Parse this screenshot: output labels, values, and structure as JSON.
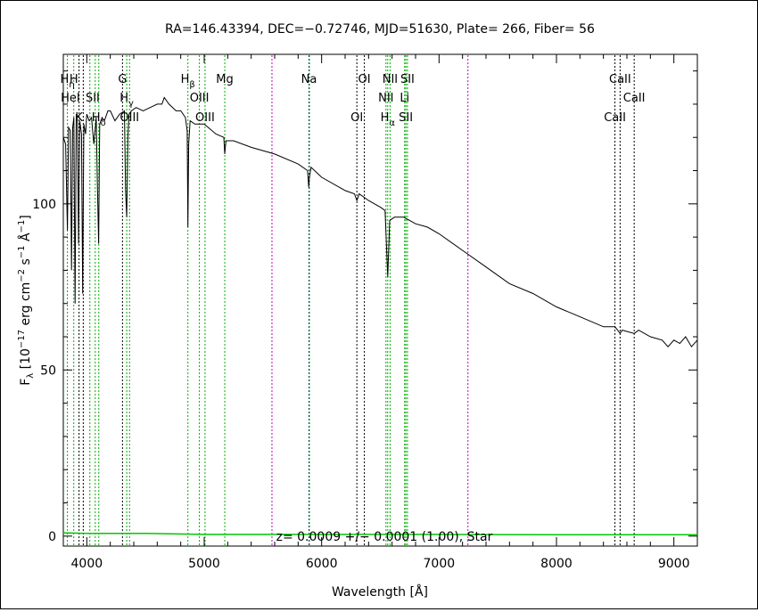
{
  "chart_data": {
    "type": "line",
    "title": "RA=146.43394, DEC=−0.72746, MJD=51630, Plate= 266, Fiber= 56",
    "xlabel": "Wavelength [Å]",
    "ylabel": "Fλ [10⁻¹⁷ erg cm⁻² s⁻¹ Å⁻¹]",
    "ylabel_parts": {
      "f": "F",
      "fsub": "λ",
      "open": " [10",
      "e1": "−17",
      "mid1": " erg cm",
      "e2": "−2",
      "mid2": " s",
      "e3": "−1",
      "mid3": " Å",
      "e4": "−1",
      "close": "]"
    },
    "xlabel_parts": {
      "main": "Wavelength [",
      "unit": "Å",
      "close": "]"
    },
    "xlim": [
      3800,
      9200
    ],
    "ylim": [
      -3,
      145
    ],
    "x_ticks": [
      4000,
      5000,
      6000,
      7000,
      8000,
      9000
    ],
    "x_tick_labels": [
      "4000",
      "5000",
      "6000",
      "7000",
      "8000",
      "9000"
    ],
    "y_ticks": [
      0,
      50,
      100
    ],
    "y_tick_labels": [
      "0",
      "50",
      "100"
    ],
    "annotation": "z= 0.0009 +/− 0.0001 (1.00), Star",
    "series": [
      {
        "name": "",
        "color": "#000000",
        "x": [
          3800,
          3820,
          3835,
          3845,
          3860,
          3870,
          3880,
          3890,
          3900,
          3910,
          3920,
          3930,
          3940,
          3955,
          3965,
          3975,
          3990,
          4000,
          4020,
          4040,
          4060,
          4080,
          4090,
          4101,
          4110,
          4130,
          4150,
          4180,
          4200,
          4240,
          4280,
          4320,
          4330,
          4340,
          4350,
          4360,
          4380,
          4420,
          4480,
          4540,
          4600,
          4640,
          4660,
          4700,
          4760,
          4800,
          4840,
          4855,
          4861,
          4868,
          4880,
          4920,
          5000,
          5100,
          5167,
          5175,
          5185,
          5250,
          5400,
          5600,
          5800,
          5880,
          5890,
          5896,
          5910,
          6000,
          6200,
          6280,
          6300,
          6320,
          6400,
          6500,
          6540,
          6563,
          6580,
          6620,
          6700,
          6800,
          6900,
          7000,
          7200,
          7400,
          7600,
          7800,
          8000,
          8200,
          8400,
          8498,
          8542,
          8560,
          8662,
          8700,
          8800,
          8900,
          8950,
          9000,
          9050,
          9100,
          9150,
          9200
        ],
        "y": [
          120,
          118,
          92,
          123,
          122,
          80,
          123,
          126,
          70,
          127,
          125,
          88,
          125,
          121,
          73,
          124,
          121,
          127,
          125,
          126,
          118,
          126,
          106,
          88,
          124,
          126,
          125,
          128,
          128,
          125,
          127,
          128,
          104,
          96,
          120,
          127,
          128,
          129,
          128,
          129,
          130,
          130,
          132,
          130,
          128,
          128,
          126,
          122,
          93,
          118,
          125,
          124,
          124,
          121,
          120,
          115,
          119,
          119,
          117,
          115,
          112,
          110,
          105,
          108,
          111,
          108,
          104,
          103,
          101,
          103,
          101,
          99,
          98,
          78,
          95,
          96,
          96,
          94,
          93,
          91,
          86,
          81,
          76,
          73,
          69,
          66,
          63,
          63,
          61,
          62,
          61,
          62,
          60,
          59,
          57,
          59,
          58,
          60,
          57,
          59
        ]
      },
      {
        "name": "",
        "color": "#00c800",
        "x": [
          3800,
          4000,
          4500,
          5000,
          6000,
          7000,
          8000,
          9000,
          9200
        ],
        "y": [
          1.0,
          0.8,
          0.8,
          0.5,
          0.5,
          0.5,
          0.4,
          0.4,
          0.4
        ]
      }
    ],
    "reference_lines": [
      {
        "x": 3835,
        "color": "#00b000"
      },
      {
        "x": 3889,
        "color": "#00b000"
      },
      {
        "x": 3934,
        "color": "#000000"
      },
      {
        "x": 3970,
        "color": "#000000"
      },
      {
        "x": 4026,
        "color": "#00b000"
      },
      {
        "x": 4072,
        "color": "#00b000"
      },
      {
        "x": 4102,
        "color": "#00b000"
      },
      {
        "x": 4304,
        "color": "#000000"
      },
      {
        "x": 4340,
        "color": "#00b000"
      },
      {
        "x": 4364,
        "color": "#00b000"
      },
      {
        "x": 4861,
        "color": "#00b000"
      },
      {
        "x": 4959,
        "color": "#00b000"
      },
      {
        "x": 5007,
        "color": "#00b000"
      },
      {
        "x": 5175,
        "color": "#00b000"
      },
      {
        "x": 5577,
        "color": "#c000c0"
      },
      {
        "x": 5892,
        "color": "#0000c0"
      },
      {
        "x": 5896,
        "color": "#00b000"
      },
      {
        "x": 6300,
        "color": "#000000"
      },
      {
        "x": 6364,
        "color": "#000000"
      },
      {
        "x": 6548,
        "color": "#00b000"
      },
      {
        "x": 6563,
        "color": "#00b000"
      },
      {
        "x": 6583,
        "color": "#00b000"
      },
      {
        "x": 6707,
        "color": "#00b000"
      },
      {
        "x": 6717,
        "color": "#00b000"
      },
      {
        "x": 6731,
        "color": "#00b000"
      },
      {
        "x": 7246,
        "color": "#c000c0"
      },
      {
        "x": 8498,
        "color": "#000000"
      },
      {
        "x": 8542,
        "color": "#000000"
      },
      {
        "x": 8662,
        "color": "#000000"
      }
    ],
    "line_labels": [
      {
        "text": "H",
        "sub": "η",
        "x": 3835,
        "row": 1
      },
      {
        "text": "H",
        "sub": "",
        "x": 3889,
        "row": 1
      },
      {
        "text": "HeI",
        "sub": "",
        "x": 3860,
        "row": 2
      },
      {
        "text": "SII",
        "sub": "",
        "x": 4050,
        "row": 2
      },
      {
        "text": "K",
        "sub": "",
        "x": 3934,
        "row": 3
      },
      {
        "text": "H",
        "sub": "δ",
        "x": 4102,
        "row": 3
      },
      {
        "text": "G",
        "sub": "",
        "x": 4304,
        "row": 1
      },
      {
        "text": "H",
        "sub": "γ",
        "x": 4340,
        "row": 2
      },
      {
        "text": "OIII",
        "sub": "",
        "x": 4364,
        "row": 3
      },
      {
        "text": "H",
        "sub": "β",
        "x": 4861,
        "row": 1
      },
      {
        "text": "OIII",
        "sub": "",
        "x": 4959,
        "row": 2
      },
      {
        "text": "OIII",
        "sub": "",
        "x": 5007,
        "row": 3
      },
      {
        "text": "Mg",
        "sub": "",
        "x": 5175,
        "row": 1
      },
      {
        "text": "Na",
        "sub": "",
        "x": 5892,
        "row": 1
      },
      {
        "text": "OI",
        "sub": "",
        "x": 6364,
        "row": 1
      },
      {
        "text": "OI",
        "sub": "",
        "x": 6300,
        "row": 3
      },
      {
        "text": "NII",
        "sub": "",
        "x": 6583,
        "row": 1
      },
      {
        "text": "SII",
        "sub": "",
        "x": 6731,
        "row": 1
      },
      {
        "text": "NII",
        "sub": "",
        "x": 6548,
        "row": 2
      },
      {
        "text": "Li",
        "sub": "",
        "x": 6707,
        "row": 2
      },
      {
        "text": "H",
        "sub": "α",
        "x": 6563,
        "row": 3
      },
      {
        "text": "SII",
        "sub": "",
        "x": 6717,
        "row": 3
      },
      {
        "text": "CaII",
        "sub": "",
        "x": 8542,
        "row": 1
      },
      {
        "text": "CaII",
        "sub": "",
        "x": 8662,
        "row": 2
      },
      {
        "text": "CaII",
        "sub": "",
        "x": 8498,
        "row": 3
      }
    ]
  }
}
